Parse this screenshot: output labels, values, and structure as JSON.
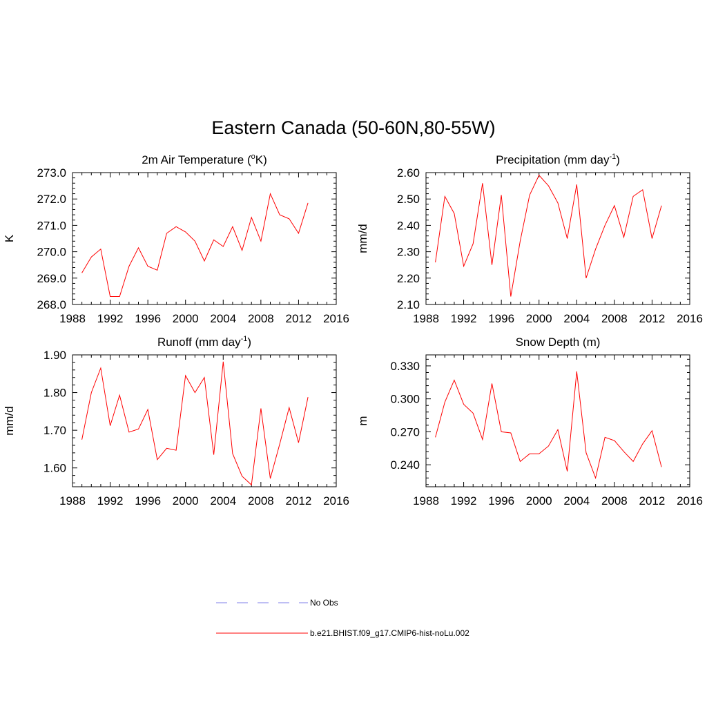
{
  "title": "Eastern Canada (50-60N,80-55W)",
  "legend": [
    {
      "label": "No Obs",
      "color": "#9999ee",
      "style": "dashed"
    },
    {
      "label": "b.e21.BHIST.f09_g17.CMIP6-hist-noLu.002",
      "color": "#ff0000",
      "style": "solid"
    }
  ],
  "chart_data": [
    {
      "type": "line",
      "title": "2m Air Temperature (",
      "title_sup": "o",
      "title_after": "K)",
      "ylabel": "K",
      "xlim": [
        1988,
        2016
      ],
      "ylim": [
        268.0,
        273.0
      ],
      "xticks": [
        1988,
        1992,
        1996,
        2000,
        2004,
        2008,
        2012,
        2016
      ],
      "yticks": [
        "268.0",
        "269.0",
        "270.0",
        "271.0",
        "272.0",
        "273.0"
      ],
      "ytick_values": [
        268.0,
        269.0,
        270.0,
        271.0,
        272.0,
        273.0
      ],
      "series": [
        {
          "color": "#ff0000",
          "x": [
            1989,
            1990,
            1991,
            1992,
            1993,
            1994,
            1995,
            1996,
            1997,
            1998,
            1999,
            2000,
            2001,
            2002,
            2003,
            2004,
            2005,
            2006,
            2007,
            2008,
            2009,
            2010,
            2011,
            2012,
            2013
          ],
          "y": [
            269.2,
            269.8,
            270.1,
            268.3,
            268.3,
            269.45,
            270.15,
            269.45,
            269.3,
            270.7,
            270.95,
            270.75,
            270.4,
            269.65,
            270.45,
            270.2,
            270.95,
            270.05,
            271.3,
            270.4,
            272.2,
            271.4,
            271.25,
            270.7,
            271.85
          ]
        }
      ]
    },
    {
      "type": "line",
      "title": "Precipitation (mm day",
      "title_sup": "-1",
      "title_after": ")",
      "ylabel": "mm/d",
      "xlim": [
        1988,
        2016
      ],
      "ylim": [
        2.1,
        2.6
      ],
      "xticks": [
        1988,
        1992,
        1996,
        2000,
        2004,
        2008,
        2012,
        2016
      ],
      "yticks": [
        "2.10",
        "2.20",
        "2.30",
        "2.40",
        "2.50",
        "2.60"
      ],
      "ytick_values": [
        2.1,
        2.2,
        2.3,
        2.4,
        2.5,
        2.6
      ],
      "series": [
        {
          "color": "#ff0000",
          "x": [
            1989,
            1990,
            1991,
            1992,
            1993,
            1994,
            1995,
            1996,
            1997,
            1998,
            1999,
            2000,
            2001,
            2002,
            2003,
            2004,
            2005,
            2006,
            2007,
            2008,
            2009,
            2010,
            2011,
            2012,
            2013
          ],
          "y": [
            2.26,
            2.51,
            2.445,
            2.245,
            2.33,
            2.56,
            2.25,
            2.515,
            2.13,
            2.34,
            2.515,
            2.59,
            2.55,
            2.485,
            2.35,
            2.555,
            2.2,
            2.31,
            2.4,
            2.475,
            2.355,
            2.51,
            2.535,
            2.35,
            2.475
          ]
        }
      ]
    },
    {
      "type": "line",
      "title": "Runoff (mm day",
      "title_sup": "-1",
      "title_after": ")",
      "ylabel": "mm/d",
      "xlim": [
        1988,
        2016
      ],
      "ylim": [
        1.55,
        1.9
      ],
      "xticks": [
        1988,
        1992,
        1996,
        2000,
        2004,
        2008,
        2012,
        2016
      ],
      "yticks": [
        "1.60",
        "1.70",
        "1.80",
        "1.90"
      ],
      "ytick_values": [
        1.6,
        1.7,
        1.8,
        1.9
      ],
      "series": [
        {
          "color": "#ff0000",
          "x": [
            1989,
            1990,
            1991,
            1992,
            1993,
            1994,
            1995,
            1996,
            1997,
            1998,
            1999,
            2000,
            2001,
            2002,
            2003,
            2004,
            2005,
            2006,
            2007,
            2008,
            2009,
            2010,
            2011,
            2012,
            2013
          ],
          "y": [
            1.675,
            1.8,
            1.865,
            1.712,
            1.793,
            1.695,
            1.703,
            1.755,
            1.622,
            1.652,
            1.647,
            1.845,
            1.8,
            1.84,
            1.635,
            1.882,
            1.638,
            1.578,
            1.555,
            1.758,
            1.572,
            1.663,
            1.76,
            1.667,
            1.788
          ]
        }
      ]
    },
    {
      "type": "line",
      "title": "Snow Depth (m)",
      "title_sup": "",
      "title_after": "",
      "ylabel": "m",
      "xlim": [
        1988,
        2016
      ],
      "ylim": [
        0.22,
        0.34
      ],
      "xticks": [
        1988,
        1992,
        1996,
        2000,
        2004,
        2008,
        2012,
        2016
      ],
      "yticks": [
        "0.240",
        "0.270",
        "0.300",
        "0.330"
      ],
      "ytick_values": [
        0.24,
        0.27,
        0.3,
        0.33
      ],
      "series": [
        {
          "color": "#ff0000",
          "x": [
            1989,
            1990,
            1991,
            1992,
            1993,
            1994,
            1995,
            1996,
            1997,
            1998,
            1999,
            2000,
            2001,
            2002,
            2003,
            2004,
            2005,
            2006,
            2007,
            2008,
            2009,
            2010,
            2011,
            2012,
            2013
          ],
          "y": [
            0.265,
            0.297,
            0.317,
            0.295,
            0.287,
            0.263,
            0.314,
            0.27,
            0.269,
            0.243,
            0.25,
            0.25,
            0.257,
            0.272,
            0.234,
            0.325,
            0.251,
            0.228,
            0.265,
            0.262,
            0.252,
            0.243,
            0.259,
            0.271,
            0.238
          ]
        }
      ]
    }
  ]
}
